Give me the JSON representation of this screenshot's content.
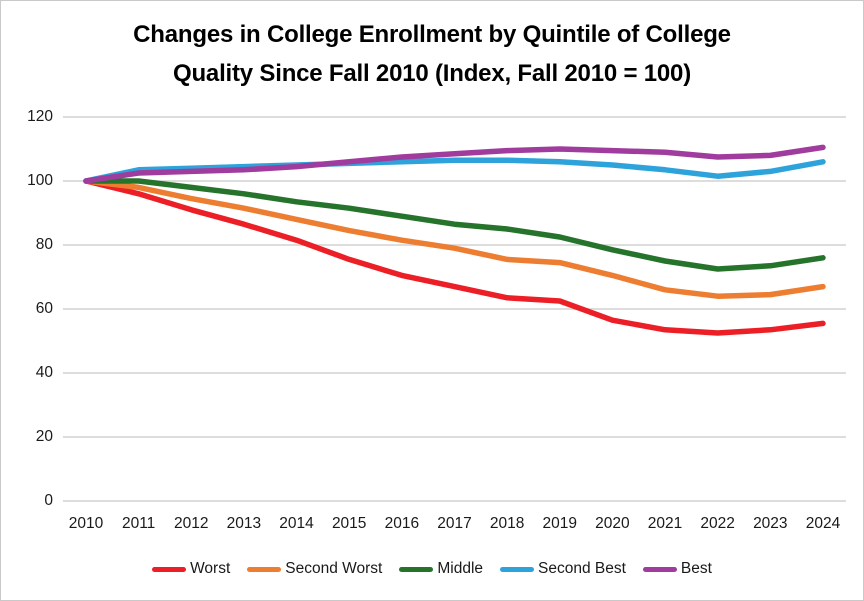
{
  "chart_data": {
    "type": "line",
    "title": "Changes in College Enrollment by Quintile of College Quality Since Fall 2010 (Index, Fall 2010 = 100)",
    "title_line1": "Changes in College Enrollment by Quintile of College",
    "title_line2": "Quality Since Fall 2010 (Index, Fall 2010 = 100)",
    "x": [
      2010,
      2011,
      2012,
      2013,
      2014,
      2015,
      2016,
      2017,
      2018,
      2019,
      2020,
      2021,
      2022,
      2023,
      2024
    ],
    "xlabel": "",
    "ylabel": "",
    "ylim": [
      0,
      120
    ],
    "yticks": [
      0,
      20,
      40,
      60,
      80,
      100,
      120
    ],
    "grid": "horizontal",
    "gridline_color": "#d8d8d8",
    "legend_position": "bottom",
    "series": [
      {
        "id": "worst",
        "name": "Worst",
        "color": "#ec1f26",
        "values": [
          100,
          96,
          91,
          86.5,
          81.5,
          75.5,
          70.5,
          67,
          63.5,
          62.5,
          56.5,
          53.5,
          52.5,
          53.5,
          55.5
        ]
      },
      {
        "id": "second-worst",
        "name": "Second Worst",
        "color": "#ed7d31",
        "values": [
          100,
          98,
          94.5,
          91.5,
          88,
          84.5,
          81.5,
          79,
          75.5,
          74.5,
          70.5,
          66,
          64,
          64.5,
          67
        ]
      },
      {
        "id": "middle",
        "name": "Middle",
        "color": "#26732c",
        "values": [
          100,
          100,
          98,
          96,
          93.5,
          91.5,
          89,
          86.5,
          85,
          82.5,
          78.5,
          75,
          72.5,
          73.5,
          76
        ]
      },
      {
        "id": "second-best",
        "name": "Second Best",
        "color": "#2ea3db",
        "values": [
          100,
          103.5,
          104,
          104.5,
          105,
          105.5,
          106,
          106.5,
          106.5,
          106,
          105,
          103.5,
          101.5,
          103,
          106
        ]
      },
      {
        "id": "best",
        "name": "Best",
        "color": "#a03c9e",
        "values": [
          100,
          102.5,
          103,
          103.5,
          104.5,
          106,
          107.5,
          108.5,
          109.5,
          110,
          109.5,
          109,
          107.5,
          108,
          110.5
        ]
      }
    ]
  }
}
